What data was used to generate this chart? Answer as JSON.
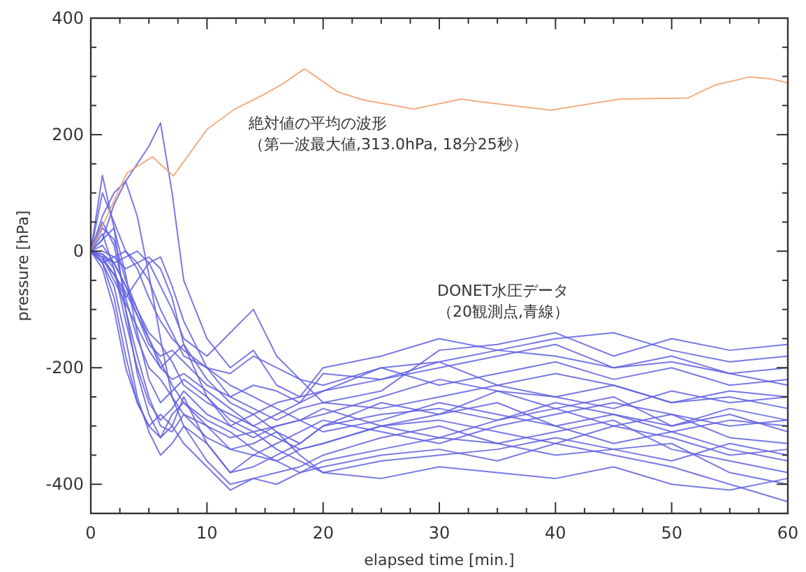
{
  "chart_data": {
    "type": "line",
    "xlabel": "elapsed time [min.]",
    "ylabel": "pressure [hPa]",
    "xlim": [
      0,
      60
    ],
    "ylim": [
      -450,
      400
    ],
    "xticks": [
      0,
      {
        "value": 2.5,
        "label": null
      },
      {
        "value": 5,
        "label": null
      },
      {
        "value": 7.5,
        "label": null
      },
      10,
      {
        "value": 12.5,
        "label": null
      },
      {
        "value": 15,
        "label": null
      },
      {
        "value": 17.5,
        "label": null
      },
      20,
      {
        "value": 22.5,
        "label": null
      },
      {
        "value": 25,
        "label": null
      },
      {
        "value": 27.5,
        "label": null
      },
      30,
      {
        "value": 32.5,
        "label": null
      },
      {
        "value": 35,
        "label": null
      },
      {
        "value": 37.5,
        "label": null
      },
      40,
      {
        "value": 42.5,
        "label": null
      },
      {
        "value": 45,
        "label": null
      },
      {
        "value": 47.5,
        "label": null
      },
      50,
      {
        "value": 52.5,
        "label": null
      },
      {
        "value": 55,
        "label": null
      },
      {
        "value": 57.5,
        "label": null
      },
      60
    ],
    "yticks": [
      -400,
      {
        "value": -350,
        "label": null
      },
      {
        "value": -300,
        "label": null
      },
      {
        "value": -250,
        "label": null
      },
      -200,
      {
        "value": -150,
        "label": null
      },
      {
        "value": -100,
        "label": null
      },
      {
        "value": -50,
        "label": null
      },
      0,
      {
        "value": 50,
        "label": null
      },
      {
        "value": 100,
        "label": null
      },
      {
        "value": 150,
        "label": null
      },
      200,
      {
        "value": 250,
        "label": null
      },
      {
        "value": 300,
        "label": null
      },
      {
        "value": 350,
        "label": null
      },
      400
    ],
    "grid": false,
    "line_style": "solid",
    "marker": "none",
    "annotations": [
      "絶対値の平均の波形",
      "（第一波最大値,313.0hPa, 18分25秒）",
      "DONET水圧データ",
      "（20観測点,青線）"
    ],
    "x": [
      0,
      1,
      2,
      3,
      4,
      5,
      6,
      7,
      8,
      10,
      12,
      14,
      16,
      18,
      20,
      25,
      30,
      35,
      40,
      45,
      50,
      55,
      60
    ],
    "series": [
      {
        "color": "#6060e0",
        "values": [
          0,
          130,
          40,
          -100,
          -210,
          -280,
          -320,
          -300,
          -250,
          -330,
          -380,
          -370,
          -350,
          -330,
          -300,
          -260,
          -280,
          -240,
          -270,
          -300,
          -280,
          -320,
          -330
        ]
      },
      {
        "color": "#6060e0",
        "values": [
          0,
          -20,
          -60,
          -150,
          -250,
          -310,
          -350,
          -330,
          -300,
          -360,
          -400,
          -390,
          -380,
          -370,
          -350,
          -320,
          -300,
          -330,
          -310,
          -290,
          -340,
          -360,
          -380
        ]
      },
      {
        "color": "#6060e0",
        "values": [
          0,
          60,
          100,
          120,
          150,
          180,
          220,
          100,
          -50,
          -150,
          -200,
          -170,
          -230,
          -250,
          -200,
          -180,
          -150,
          -170,
          -180,
          -200,
          -190,
          -210,
          -200
        ]
      },
      {
        "color": "#6060e0",
        "values": [
          0,
          -10,
          -40,
          -80,
          -50,
          -20,
          -10,
          -60,
          -120,
          -200,
          -250,
          -230,
          -240,
          -260,
          -210,
          -220,
          -190,
          -230,
          -210,
          -230,
          -260,
          -250,
          -270
        ]
      },
      {
        "color": "#6060e0",
        "values": [
          0,
          20,
          80,
          120,
          60,
          -40,
          -150,
          -250,
          -300,
          -330,
          -380,
          -350,
          -360,
          -340,
          -330,
          -300,
          -280,
          -260,
          -300,
          -330,
          -310,
          -340,
          -360
        ]
      },
      {
        "color": "#6060e0",
        "values": [
          0,
          -5,
          -30,
          -100,
          -180,
          -250,
          -300,
          -310,
          -280,
          -300,
          -340,
          -350,
          -330,
          -310,
          -290,
          -310,
          -330,
          -300,
          -280,
          -260,
          -280,
          -300,
          -290
        ]
      },
      {
        "color": "#6060e0",
        "values": [
          0,
          -10,
          -20,
          -10,
          0,
          -20,
          -60,
          -100,
          -150,
          -180,
          -140,
          -100,
          -180,
          -220,
          -260,
          -240,
          -170,
          -160,
          -140,
          -180,
          -150,
          -170,
          -160
        ]
      },
      {
        "color": "#6060e0",
        "values": [
          0,
          30,
          -30,
          -120,
          -200,
          -260,
          -290,
          -270,
          -240,
          -280,
          -300,
          -320,
          -300,
          -290,
          -280,
          -250,
          -220,
          -240,
          -250,
          -230,
          -260,
          -240,
          -250
        ]
      },
      {
        "color": "#6060e0",
        "values": [
          0,
          -20,
          -80,
          -180,
          -260,
          -300,
          -320,
          -280,
          -260,
          -290,
          -310,
          -340,
          -360,
          -380,
          -360,
          -340,
          -320,
          -330,
          -350,
          -340,
          -330,
          -380,
          -400
        ]
      },
      {
        "color": "#6060e0",
        "values": [
          0,
          40,
          20,
          -50,
          -100,
          -150,
          -200,
          -180,
          -160,
          -220,
          -260,
          -280,
          -260,
          -250,
          -240,
          -200,
          -230,
          -210,
          -190,
          -220,
          -200,
          -230,
          -220
        ]
      },
      {
        "color": "#6060e0",
        "values": [
          0,
          0,
          -10,
          -30,
          -20,
          -10,
          -30,
          -80,
          -160,
          -250,
          -300,
          -280,
          -310,
          -330,
          -300,
          -280,
          -270,
          -290,
          -270,
          -250,
          -300,
          -280,
          -310
        ]
      },
      {
        "color": "#6060e0",
        "values": [
          0,
          -30,
          -100,
          -200,
          -260,
          -300,
          -280,
          -300,
          -330,
          -370,
          -410,
          -390,
          -400,
          -380,
          -370,
          -350,
          -340,
          -360,
          -330,
          -350,
          -370,
          -400,
          -430
        ]
      },
      {
        "color": "#6060e0",
        "values": [
          0,
          100,
          50,
          0,
          -30,
          -80,
          -120,
          -150,
          -170,
          -200,
          -230,
          -250,
          -270,
          -290,
          -310,
          -290,
          -260,
          -280,
          -300,
          -280,
          -310,
          -290,
          -300
        ]
      },
      {
        "color": "#6060e0",
        "values": [
          0,
          -10,
          -50,
          -90,
          -130,
          -170,
          -200,
          -220,
          -210,
          -240,
          -270,
          -300,
          -320,
          -340,
          -330,
          -300,
          -290,
          -310,
          -330,
          -300,
          -320,
          -350,
          -340
        ]
      },
      {
        "color": "#6060e0",
        "values": [
          0,
          10,
          -20,
          -60,
          -100,
          -140,
          -160,
          -190,
          -230,
          -260,
          -280,
          -300,
          -280,
          -260,
          -240,
          -220,
          -200,
          -180,
          -160,
          -200,
          -180,
          -210,
          -230
        ]
      },
      {
        "color": "#6060e0",
        "values": [
          0,
          -5,
          -20,
          -60,
          -110,
          -160,
          -180,
          -170,
          -190,
          -230,
          -250,
          -270,
          -290,
          -270,
          -260,
          -270,
          -250,
          -230,
          -250,
          -270,
          -240,
          -260,
          -250
        ]
      },
      {
        "color": "#6060e0",
        "values": [
          0,
          50,
          10,
          -80,
          -150,
          -200,
          -220,
          -250,
          -280,
          -320,
          -340,
          -330,
          -310,
          -350,
          -380,
          -360,
          -350,
          -340,
          -320,
          -340,
          -360,
          -330,
          -350
        ]
      },
      {
        "color": "#6060e0",
        "values": [
          0,
          -20,
          -10,
          0,
          -20,
          -50,
          -100,
          -140,
          -180,
          -200,
          -210,
          -180,
          -200,
          -220,
          -230,
          -200,
          -190,
          -170,
          -150,
          -140,
          -170,
          -190,
          -180
        ]
      },
      {
        "color": "#6060e0",
        "values": [
          0,
          20,
          40,
          -40,
          -140,
          -220,
          -260,
          -240,
          -220,
          -250,
          -290,
          -310,
          -340,
          -360,
          -380,
          -390,
          -370,
          -380,
          -390,
          -370,
          -400,
          -410,
          -390
        ]
      },
      {
        "color": "#6060e0",
        "values": [
          0,
          -15,
          -40,
          -70,
          -110,
          -150,
          -190,
          -230,
          -260,
          -300,
          -320,
          -310,
          -300,
          -290,
          -270,
          -300,
          -320,
          -290,
          -260,
          -280,
          -300,
          -270,
          -290
        ]
      },
      {
        "color": "#f0a070",
        "x": [
          0,
          3.1,
          5.3,
          7.1,
          10,
          12.4,
          14.8,
          16.5,
          18.4,
          21.3,
          23.6,
          27.8,
          31.9,
          33.7,
          39.6,
          45.5,
          51.4,
          53.7,
          56.7,
          58.5,
          60
        ],
        "values": [
          0,
          134,
          162,
          129,
          209,
          244,
          268,
          287,
          313,
          273,
          259,
          244,
          261,
          256,
          242,
          261,
          263,
          285,
          299,
          296,
          289
        ]
      }
    ]
  }
}
